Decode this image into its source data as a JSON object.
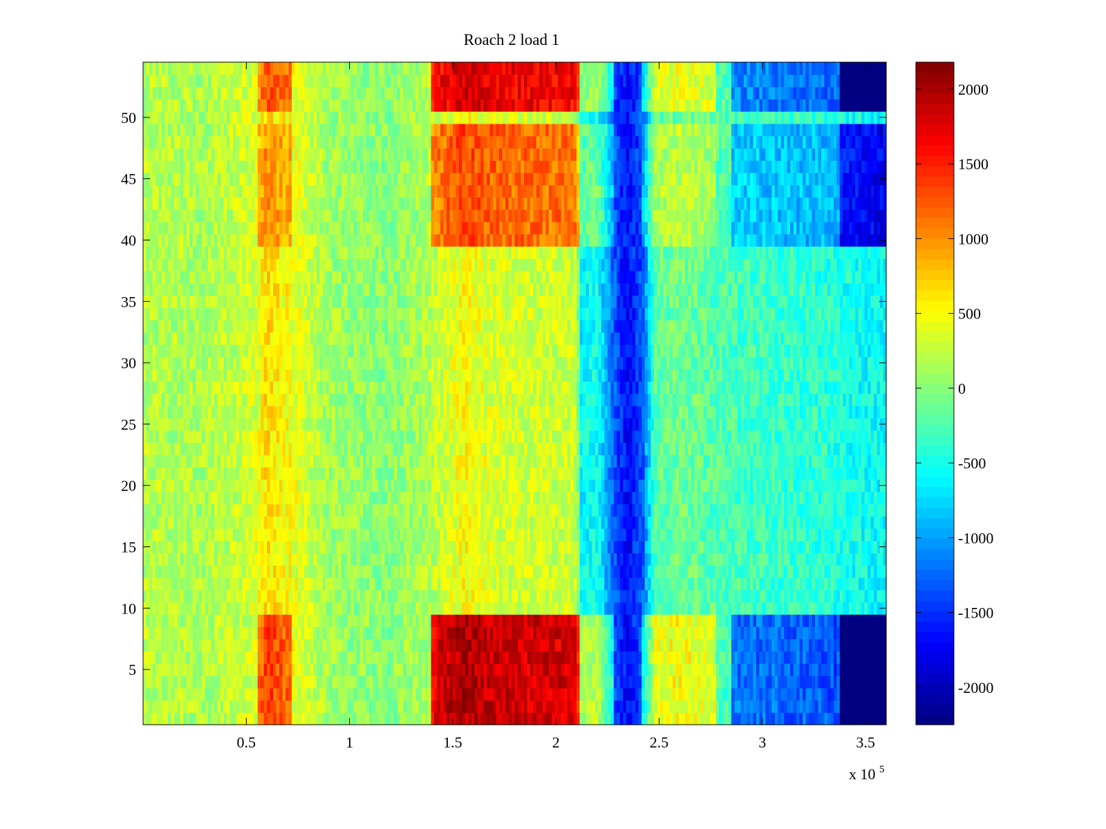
{
  "chart_data": {
    "type": "heatmap",
    "title": "Roach 2 load 1",
    "xlabel": "",
    "ylabel": "",
    "x_exponent_label": {
      "base": "x 10",
      "power": "5"
    },
    "xlim": [
      0,
      3.6
    ],
    "ylim": [
      0.5,
      54.5
    ],
    "x_ticks": [
      0.5,
      1,
      1.5,
      2,
      2.5,
      3,
      3.5
    ],
    "x_tick_labels": [
      "0.5",
      "1",
      "1.5",
      "2",
      "2.5",
      "3",
      "3.5"
    ],
    "y_ticks": [
      5,
      10,
      15,
      20,
      25,
      30,
      35,
      40,
      45,
      50
    ],
    "y_tick_labels": [
      "5",
      "10",
      "15",
      "20",
      "25",
      "30",
      "35",
      "40",
      "45",
      "50"
    ],
    "rows": 54,
    "colorbar": {
      "colormap": "jet",
      "range": [
        -2250,
        2180
      ],
      "ticks": [
        2000,
        1500,
        1000,
        500,
        0,
        -500,
        -1000,
        -1500,
        -2000
      ],
      "tick_labels": [
        "2000",
        "1500",
        "1000",
        "500",
        "0",
        "-500",
        "-1000",
        "-1500",
        "-2000"
      ]
    },
    "column_profile": [
      {
        "x": 0.0,
        "v": 200
      },
      {
        "x": 0.3,
        "v": 150
      },
      {
        "x": 0.55,
        "v": 350
      },
      {
        "x": 0.6,
        "v": 650
      },
      {
        "x": 0.7,
        "v": 500
      },
      {
        "x": 0.9,
        "v": 100
      },
      {
        "x": 1.2,
        "v": 0
      },
      {
        "x": 1.4,
        "v": 200
      },
      {
        "x": 1.55,
        "v": 500
      },
      {
        "x": 1.7,
        "v": 350
      },
      {
        "x": 2.0,
        "v": 300
      },
      {
        "x": 2.1,
        "v": 300
      },
      {
        "x": 2.12,
        "v": -600
      },
      {
        "x": 2.2,
        "v": -500
      },
      {
        "x": 2.28,
        "v": -1300
      },
      {
        "x": 2.35,
        "v": -1700
      },
      {
        "x": 2.42,
        "v": -1300
      },
      {
        "x": 2.48,
        "v": -200
      },
      {
        "x": 2.6,
        "v": -100
      },
      {
        "x": 2.9,
        "v": -300
      },
      {
        "x": 3.3,
        "v": -400
      },
      {
        "x": 3.5,
        "v": -550
      },
      {
        "x": 3.6,
        "v": -600
      }
    ],
    "hot_rows": [
      {
        "from": 1,
        "to": 9,
        "intensity": 1.0
      },
      {
        "from": 51,
        "to": 54,
        "intensity": 0.9
      },
      {
        "from": 40,
        "to": 49,
        "intensity": 0.55
      }
    ],
    "hot_regions": [
      {
        "x_from": 0.56,
        "x_to": 0.72,
        "boost": 700
      },
      {
        "x_from": 1.4,
        "x_to": 2.11,
        "boost": 1500
      },
      {
        "x_from": 2.12,
        "x_to": 2.28,
        "boost": 700
      },
      {
        "x_from": 2.42,
        "x_to": 2.78,
        "boost": 600
      }
    ],
    "cold_regions": [
      {
        "x_from": 2.85,
        "x_to": 3.6,
        "boost": -900
      },
      {
        "x_from": 3.38,
        "x_to": 3.6,
        "boost": -1200
      }
    ]
  }
}
